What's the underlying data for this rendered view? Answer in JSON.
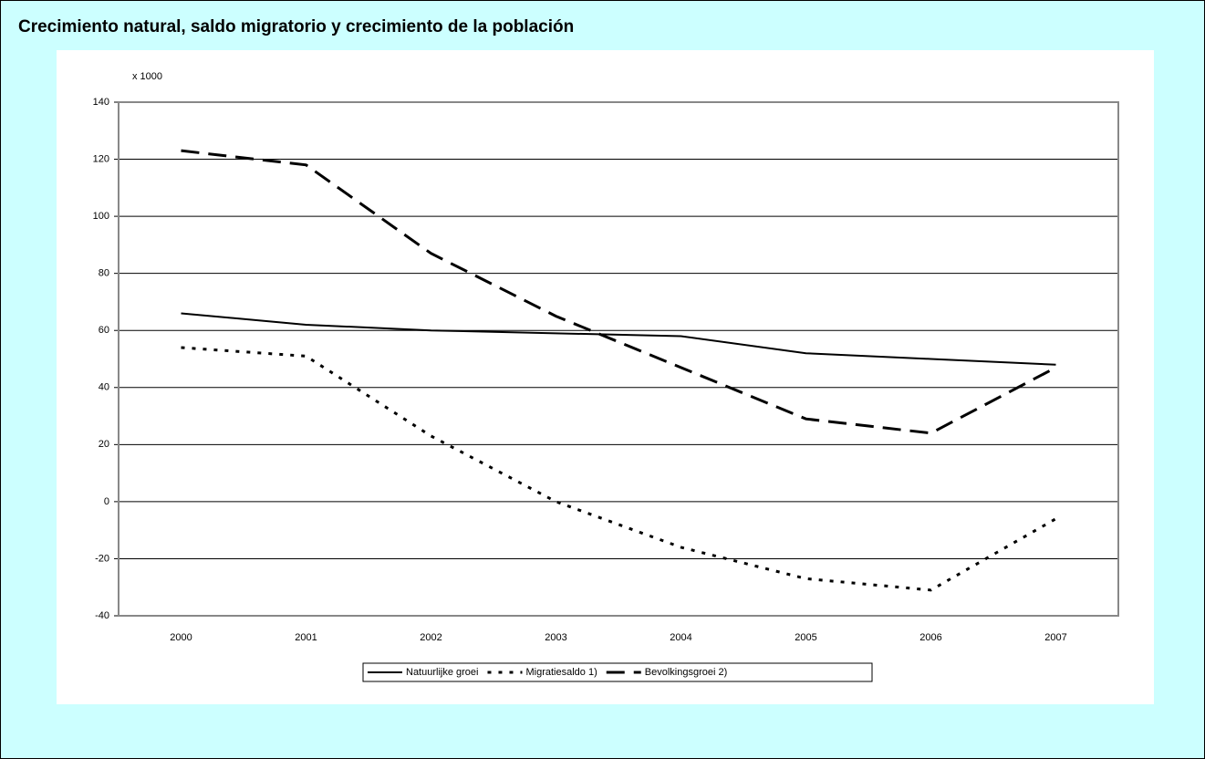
{
  "chart_data": {
    "type": "line",
    "title": "Crecimiento natural, saldo migratorio y crecimiento de la población",
    "y_label": "x 1000",
    "categories": [
      "2000",
      "2001",
      "2002",
      "2003",
      "2004",
      "2005",
      "2006",
      "2007"
    ],
    "series": [
      {
        "name": "Natuurlijke groei",
        "color": "#000000",
        "line_style": "solid",
        "values": [
          66,
          62,
          60,
          59,
          58,
          52,
          50,
          48
        ]
      },
      {
        "name": "Migratiesaldo 1)",
        "color": "#000000",
        "line_style": "dotted",
        "values": [
          54,
          51,
          23,
          0,
          -16,
          -27,
          -31,
          -6
        ]
      },
      {
        "name": "Bevolkingsgroei 2)",
        "color": "#000000",
        "line_style": "dashed",
        "values": [
          123,
          118,
          87,
          65,
          47,
          29,
          24,
          47
        ]
      }
    ],
    "ylim": [
      -40,
      140
    ],
    "yticks": [
      -40,
      -20,
      0,
      20,
      40,
      60,
      80,
      100,
      120,
      140
    ],
    "grid": true,
    "legend": "bottom"
  }
}
